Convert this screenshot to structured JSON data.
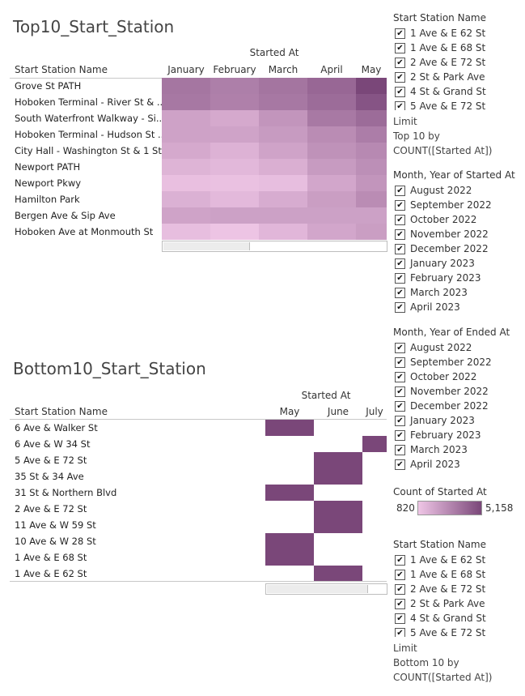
{
  "top": {
    "title": "Top10_Start_Station",
    "group_header": "Started At",
    "row_header": "Start Station Name",
    "columns": [
      "January",
      "February",
      "March",
      "April",
      "May"
    ],
    "rows": [
      {
        "name": "Grove St PATH",
        "counts": [
          3560,
          3250,
          3600,
          4050,
          5158
        ]
      },
      {
        "name": "Hoboken Terminal - River St & ..",
        "counts": [
          3480,
          3200,
          3500,
          3900,
          4700
        ]
      },
      {
        "name": "South Waterfront Walkway - Si..",
        "counts": [
          2050,
          1800,
          2500,
          3450,
          3900
        ]
      },
      {
        "name": "Hoboken Terminal - Hudson St ..",
        "counts": [
          2050,
          2000,
          2300,
          2800,
          3300
        ]
      },
      {
        "name": "City Hall - Washington St & 1 St",
        "counts": [
          1800,
          1500,
          2000,
          2600,
          2900
        ]
      },
      {
        "name": "Newport PATH",
        "counts": [
          1450,
          1300,
          1600,
          2300,
          2700
        ]
      },
      {
        "name": "Newport Pkwy",
        "counts": [
          1050,
          1000,
          1100,
          1900,
          2500
        ]
      },
      {
        "name": "Hamilton Park",
        "counts": [
          1550,
          1250,
          1700,
          2200,
          2800
        ]
      },
      {
        "name": "Bergen Ave & Sip Ave",
        "counts": [
          2000,
          2100,
          2100,
          2100,
          2100
        ]
      },
      {
        "name": "Hoboken Ave at Monmouth St",
        "counts": [
          1100,
          900,
          1350,
          1900,
          2200
        ]
      }
    ]
  },
  "bottom": {
    "title": "Bottom10_Start_Station",
    "group_header": "Started At",
    "row_header": "Start Station Name",
    "columns": [
      "May",
      "June",
      "July"
    ],
    "rows": [
      {
        "name": "6 Ave & Walker St",
        "month": "May"
      },
      {
        "name": "6 Ave & W 34 St",
        "month": "July"
      },
      {
        "name": "5 Ave & E 72 St",
        "month": "June"
      },
      {
        "name": "35 St & 34 Ave",
        "month": "June"
      },
      {
        "name": "31 St & Northern Blvd",
        "month": "May"
      },
      {
        "name": "2 Ave & E 72 St",
        "month": "June"
      },
      {
        "name": "11 Ave & W 59 St",
        "month": "June"
      },
      {
        "name": "10 Ave & W 28 St",
        "month": "May"
      },
      {
        "name": "1 Ave & E 68 St",
        "month": "May"
      },
      {
        "name": "1 Ave & E 62 St",
        "month": "June"
      }
    ]
  },
  "filters": {
    "start_station": {
      "title": "Start Station Name",
      "items": [
        "1 Ave & E 62 St",
        "1 Ave & E 68 St",
        "2 Ave & E 72 St",
        "2 St & Park Ave",
        "4 St & Grand St",
        "5 Ave & E 72 St"
      ],
      "limit_label": "Limit",
      "limit_value": "Top 10 by COUNT([Started At])"
    },
    "month_started": {
      "title": "Month, Year of Started At",
      "items": [
        "August 2022",
        "September 2022",
        "October 2022",
        "November 2022",
        "December 2022",
        "January 2023",
        "February 2023",
        "March 2023",
        "April 2023"
      ]
    },
    "month_ended": {
      "title": "Month, Year of Ended At",
      "items": [
        "August 2022",
        "September 2022",
        "October 2022",
        "November 2022",
        "December 2022",
        "January 2023",
        "February 2023",
        "March 2023",
        "April 2023"
      ]
    },
    "start_station_2": {
      "title": "Start Station Name",
      "items": [
        "1 Ave & E 62 St",
        "1 Ave & E 68 St",
        "2 Ave & E 72 St",
        "2 St & Park Ave",
        "4 St & Grand St",
        "5 Ave & E 72 St"
      ],
      "limit_label": "Limit",
      "limit_value": "Bottom 10 by COUNT([Started At])"
    }
  },
  "legend": {
    "title": "Count of Started At",
    "min": "820",
    "max": "5,158",
    "min_value": 820,
    "max_value": 5158,
    "color_low": "#efc6e6",
    "color_high": "#7a4779"
  },
  "checkmark": "✔"
}
